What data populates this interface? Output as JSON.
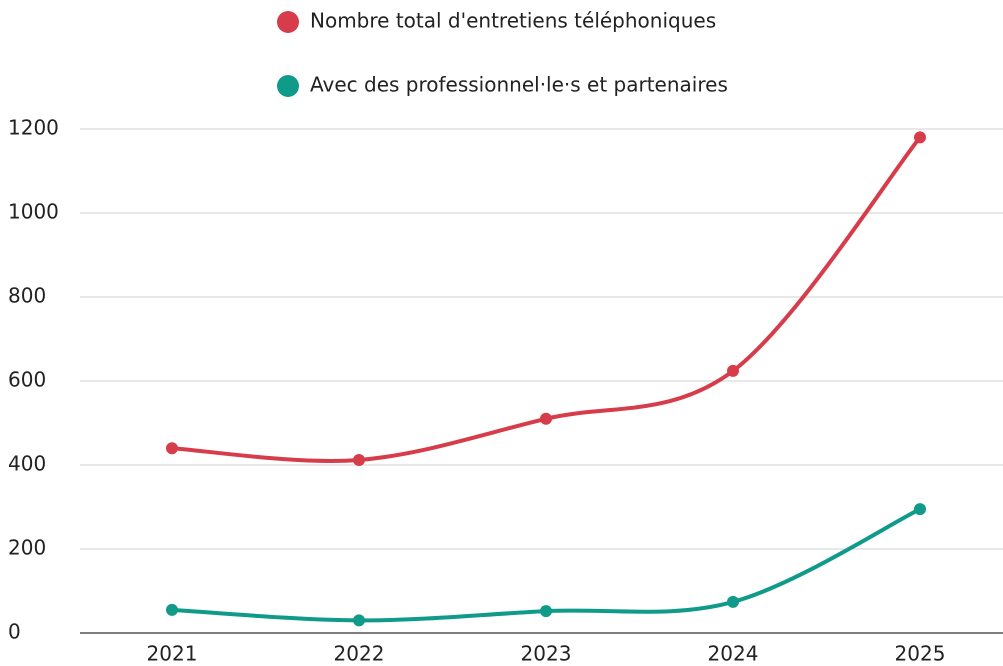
{
  "chart_data": {
    "type": "line",
    "categories": [
      "2021",
      "2022",
      "2023",
      "2024",
      "2025"
    ],
    "series": [
      {
        "name": "Nombre total d'entretiens téléphoniques",
        "color": "#d63c4a",
        "values": [
          440,
          412,
          510,
          624,
          1180
        ]
      },
      {
        "name": "Avec des professionnel·le·s et partenaires",
        "color": "#0f9a8a",
        "values": [
          55,
          30,
          52,
          74,
          295
        ]
      }
    ],
    "ylim": [
      0,
      1200
    ],
    "yticks": [
      0,
      200,
      400,
      600,
      800,
      1000,
      1200
    ],
    "grid": true,
    "legend": "top"
  }
}
